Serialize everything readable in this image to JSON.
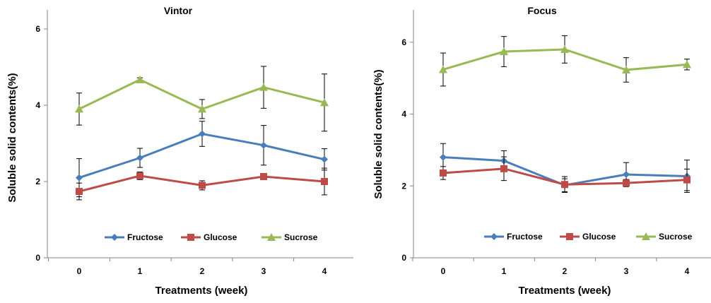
{
  "chart_data": [
    {
      "type": "line",
      "title": "Vintor",
      "xlabel": "Treatments (week)",
      "ylabel": "Soluble solid contents(%)",
      "categories": [
        "0",
        "1",
        "2",
        "3",
        "4"
      ],
      "ylim": [
        0,
        6.5
      ],
      "yticks": [
        0,
        2,
        4,
        6
      ],
      "grid": false,
      "legend_position": "bottom",
      "series": [
        {
          "name": "Fructose",
          "color": "#4a7ebb",
          "marker": "diamond",
          "values": [
            2.1,
            2.62,
            3.25,
            2.95,
            2.58
          ],
          "errors": [
            0.5,
            0.25,
            0.33,
            0.52,
            0.28
          ]
        },
        {
          "name": "Glucose",
          "color": "#be4b48",
          "marker": "square",
          "values": [
            1.74,
            2.15,
            1.9,
            2.13,
            2.0
          ],
          "errors": [
            0.22,
            0.1,
            0.12,
            0.06,
            0.35
          ]
        },
        {
          "name": "Sucrose",
          "color": "#98b954",
          "marker": "triangle",
          "values": [
            3.9,
            4.67,
            3.9,
            4.47,
            4.07
          ],
          "errors": [
            0.42,
            0.05,
            0.25,
            0.55,
            0.75
          ]
        }
      ]
    },
    {
      "type": "line",
      "title": "Focus",
      "xlabel": "Treatments (week)",
      "ylabel": "Soluble solid contents(%)",
      "categories": [
        "0",
        "1",
        "2",
        "3",
        "4"
      ],
      "ylim": [
        0,
        6.9
      ],
      "yticks": [
        0,
        2,
        4,
        6
      ],
      "grid": false,
      "legend_position": "bottom",
      "series": [
        {
          "name": "Fructose",
          "color": "#4a7ebb",
          "marker": "diamond",
          "values": [
            2.8,
            2.7,
            2.02,
            2.32,
            2.27
          ],
          "errors": [
            0.38,
            0.28,
            0.18,
            0.33,
            0.45
          ]
        },
        {
          "name": "Glucose",
          "color": "#be4b48",
          "marker": "square",
          "values": [
            2.36,
            2.48,
            2.04,
            2.08,
            2.17
          ],
          "errors": [
            0.18,
            0.33,
            0.22,
            0.1,
            0.3
          ]
        },
        {
          "name": "Sucrose",
          "color": "#98b954",
          "marker": "triangle",
          "values": [
            5.24,
            5.74,
            5.8,
            5.23,
            5.38
          ],
          "errors": [
            0.46,
            0.42,
            0.38,
            0.34,
            0.15
          ]
        }
      ]
    }
  ]
}
